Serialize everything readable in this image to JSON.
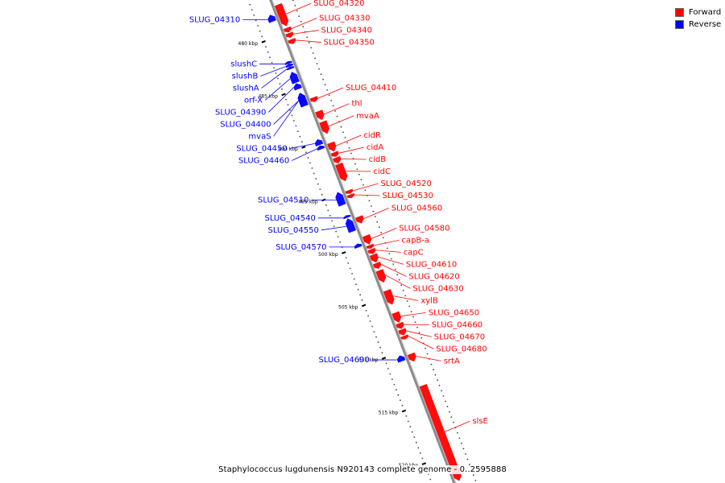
{
  "caption": "Staphylococcus lugdunensis N920143 complete genome - 0..2595888",
  "legend": [
    {
      "label": "Forward",
      "color": "#ff0000"
    },
    {
      "label": "Reverse",
      "color": "#0000ff"
    }
  ],
  "colors": {
    "forward": "#ff0000",
    "reverse": "#0000ff",
    "backbone": "#8c8c8c"
  },
  "scale": {
    "unit": "kbp",
    "major_ticks": [
      480,
      485,
      490,
      495,
      500,
      505,
      510,
      515,
      520
    ]
  },
  "forward_genes": [
    {
      "name": "SLUG_04320",
      "start": 477.4,
      "end": 479.4
    },
    {
      "name": "SLUG_04330",
      "start": 479.6,
      "end": 480.0
    },
    {
      "name": "SLUG_04340",
      "start": 480.1,
      "end": 480.5
    },
    {
      "name": "SLUG_04350",
      "start": 480.7,
      "end": 481.1
    },
    {
      "name": "SLUG_04410",
      "start": 486.2,
      "end": 486.6
    },
    {
      "name": "thl",
      "start": 487.5,
      "end": 488.3
    },
    {
      "name": "mvaA",
      "start": 488.5,
      "end": 489.6
    },
    {
      "name": "cidR",
      "start": 490.5,
      "end": 491.3
    },
    {
      "name": "cidA",
      "start": 491.4,
      "end": 491.8
    },
    {
      "name": "cidB",
      "start": 491.9,
      "end": 492.4
    },
    {
      "name": "cidC",
      "start": 492.5,
      "end": 494.1
    },
    {
      "name": "SLUG_04520",
      "start": 495.0,
      "end": 495.3
    },
    {
      "name": "SLUG_04530",
      "start": 495.4,
      "end": 495.7
    },
    {
      "name": "SLUG_04560",
      "start": 497.5,
      "end": 498.1
    },
    {
      "name": "SLUG_04580",
      "start": 499.3,
      "end": 500.1
    },
    {
      "name": "capB-a",
      "start": 500.2,
      "end": 500.5
    },
    {
      "name": "capC",
      "start": 500.6,
      "end": 501.0
    },
    {
      "name": "SLUG_04610",
      "start": 501.1,
      "end": 501.8
    },
    {
      "name": "SLUG_04620",
      "start": 501.9,
      "end": 502.4
    },
    {
      "name": "SLUG_04630",
      "start": 502.6,
      "end": 503.7
    },
    {
      "name": "xylB",
      "start": 504.5,
      "end": 505.8
    },
    {
      "name": "SLUG_04650",
      "start": 506.6,
      "end": 507.5
    },
    {
      "name": "SLUG_04660",
      "start": 507.6,
      "end": 508.1
    },
    {
      "name": "SLUG_04670",
      "start": 508.2,
      "end": 508.7
    },
    {
      "name": "SLUG_04680",
      "start": 508.8,
      "end": 509.1
    },
    {
      "name": "srtA",
      "start": 510.5,
      "end": 511.2
    },
    {
      "name": "slsE",
      "start": 513.5,
      "end": 522.5
    }
  ],
  "reverse_genes": [
    {
      "name": "SLUG_04310",
      "start": 478.0,
      "end": 478.6
    },
    {
      "name": "slushC",
      "start": 482.4,
      "end": 482.6
    },
    {
      "name": "slushB",
      "start": 482.65,
      "end": 482.85
    },
    {
      "name": "slushA",
      "start": 482.9,
      "end": 483.1
    },
    {
      "name": "orf-X",
      "start": 483.4,
      "end": 484.4
    },
    {
      "name": "SLUG_04390",
      "start": 484.5,
      "end": 485.0
    },
    {
      "name": "SLUG_04400",
      "start": 485.4,
      "end": 486.6
    },
    {
      "name": "mvaS",
      "start": 485.4,
      "end": 486.6
    },
    {
      "name": "SLUG_04450",
      "start": 489.8,
      "end": 490.3
    },
    {
      "name": "SLUG_04460",
      "start": 490.4,
      "end": 490.7
    },
    {
      "name": "SLUG_04510",
      "start": 494.8,
      "end": 496.0
    },
    {
      "name": "SLUG_04540",
      "start": 497.0,
      "end": 497.2
    },
    {
      "name": "SLUG_04550",
      "start": 497.3,
      "end": 498.5
    },
    {
      "name": "SLUG_04570",
      "start": 499.7,
      "end": 500.0
    },
    {
      "name": "SLUG_04690",
      "start": 510.3,
      "end": 510.8
    }
  ]
}
